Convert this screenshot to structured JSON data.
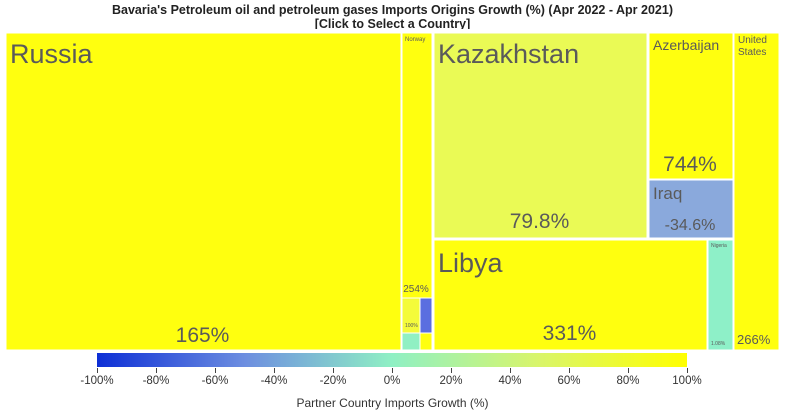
{
  "title": {
    "line1": "Bavaria's Petroleum oil and petroleum gases Imports Origins Growth (%) (Apr 2022 - Apr 2021)",
    "line2": "[Click to Select a Country]"
  },
  "chart_data": {
    "type": "treemap",
    "metric": "Partner Country Imports Growth (%)",
    "tiles": [
      {
        "country": "Russia",
        "growth_label": "165%",
        "growth": 165,
        "color": "#ffff0f"
      },
      {
        "country": "Norway",
        "growth_label": "254%",
        "growth": 254,
        "color": "#ffff0f"
      },
      {
        "country": "",
        "growth_label": "100%",
        "growth": 100,
        "color": "#f4fb3a"
      },
      {
        "country": "",
        "growth_label": "",
        "growth": null,
        "color": "#90f0c3"
      },
      {
        "country": "",
        "growth_label": "",
        "growth": null,
        "color": "#5a6ee0"
      },
      {
        "country": "",
        "growth_label": "",
        "growth": null,
        "color": "#ffff0f"
      },
      {
        "country": "Kazakhstan",
        "growth_label": "79.8%",
        "growth": 79.8,
        "color": "#eafa55"
      },
      {
        "country": "Azerbaijan",
        "growth_label": "744%",
        "growth": 744,
        "color": "#ffff0f"
      },
      {
        "country": "Iraq",
        "growth_label": "-34.6%",
        "growth": -34.6,
        "color": "#8aa9dc"
      },
      {
        "country": "Libya",
        "growth_label": "331%",
        "growth": 331,
        "color": "#ffff0f"
      },
      {
        "country": "Nigeria",
        "growth_label": "1.08%",
        "growth": 1.08,
        "color": "#8ef0c8"
      },
      {
        "country": "United States",
        "growth_label": "266%",
        "growth": 266,
        "color": "#ffff0f"
      }
    ],
    "colorbar": {
      "title": "Partner Country Imports Growth (%)",
      "range": [
        -100,
        100
      ],
      "ticks": [
        "-100%",
        "-80%",
        "-60%",
        "-40%",
        "-20%",
        "0%",
        "20%",
        "40%",
        "60%",
        "80%",
        "100%"
      ]
    }
  }
}
